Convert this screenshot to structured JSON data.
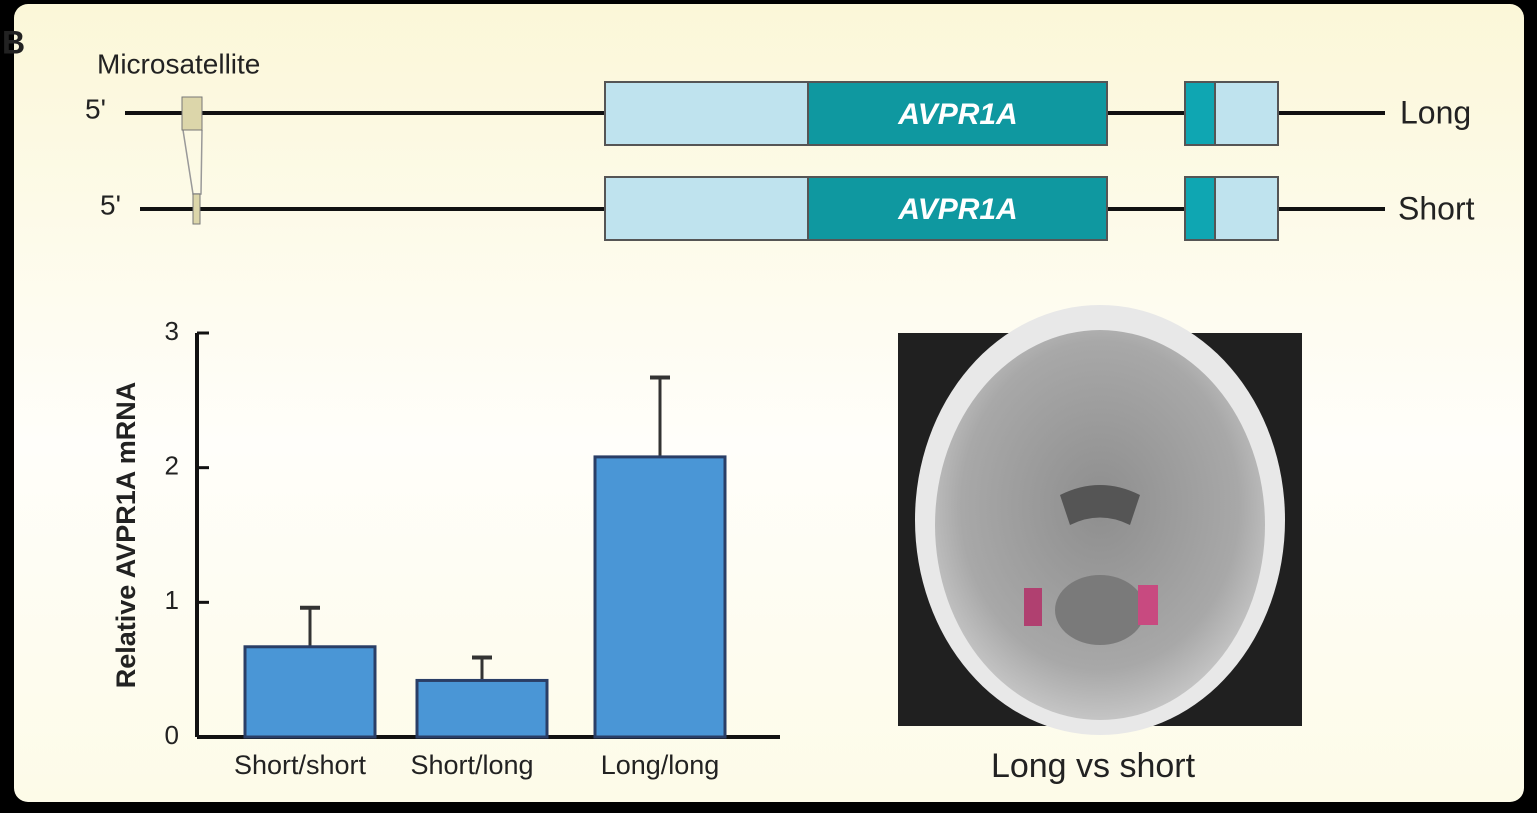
{
  "panel_label": "B",
  "gene_diagram": {
    "microsatellite_label": "Microsatellite",
    "rows": [
      {
        "prime": "5'",
        "gene": "AVPR1A",
        "allele": "Long"
      },
      {
        "prime": "5'",
        "gene": "AVPR1A",
        "allele": "Short"
      }
    ]
  },
  "chart_data": {
    "type": "bar",
    "y_label": "Relative AVPR1A mRNA",
    "categories": [
      "Short/short",
      "Short/long",
      "Long/long"
    ],
    "values": [
      0.67,
      0.42,
      2.08
    ],
    "errors": [
      0.29,
      0.17,
      0.59
    ],
    "color": "#4a96d6",
    "ylim": [
      0,
      3
    ],
    "yticks": [
      0,
      1,
      2,
      3
    ]
  },
  "brain_image": {
    "caption": "Long vs short"
  }
}
